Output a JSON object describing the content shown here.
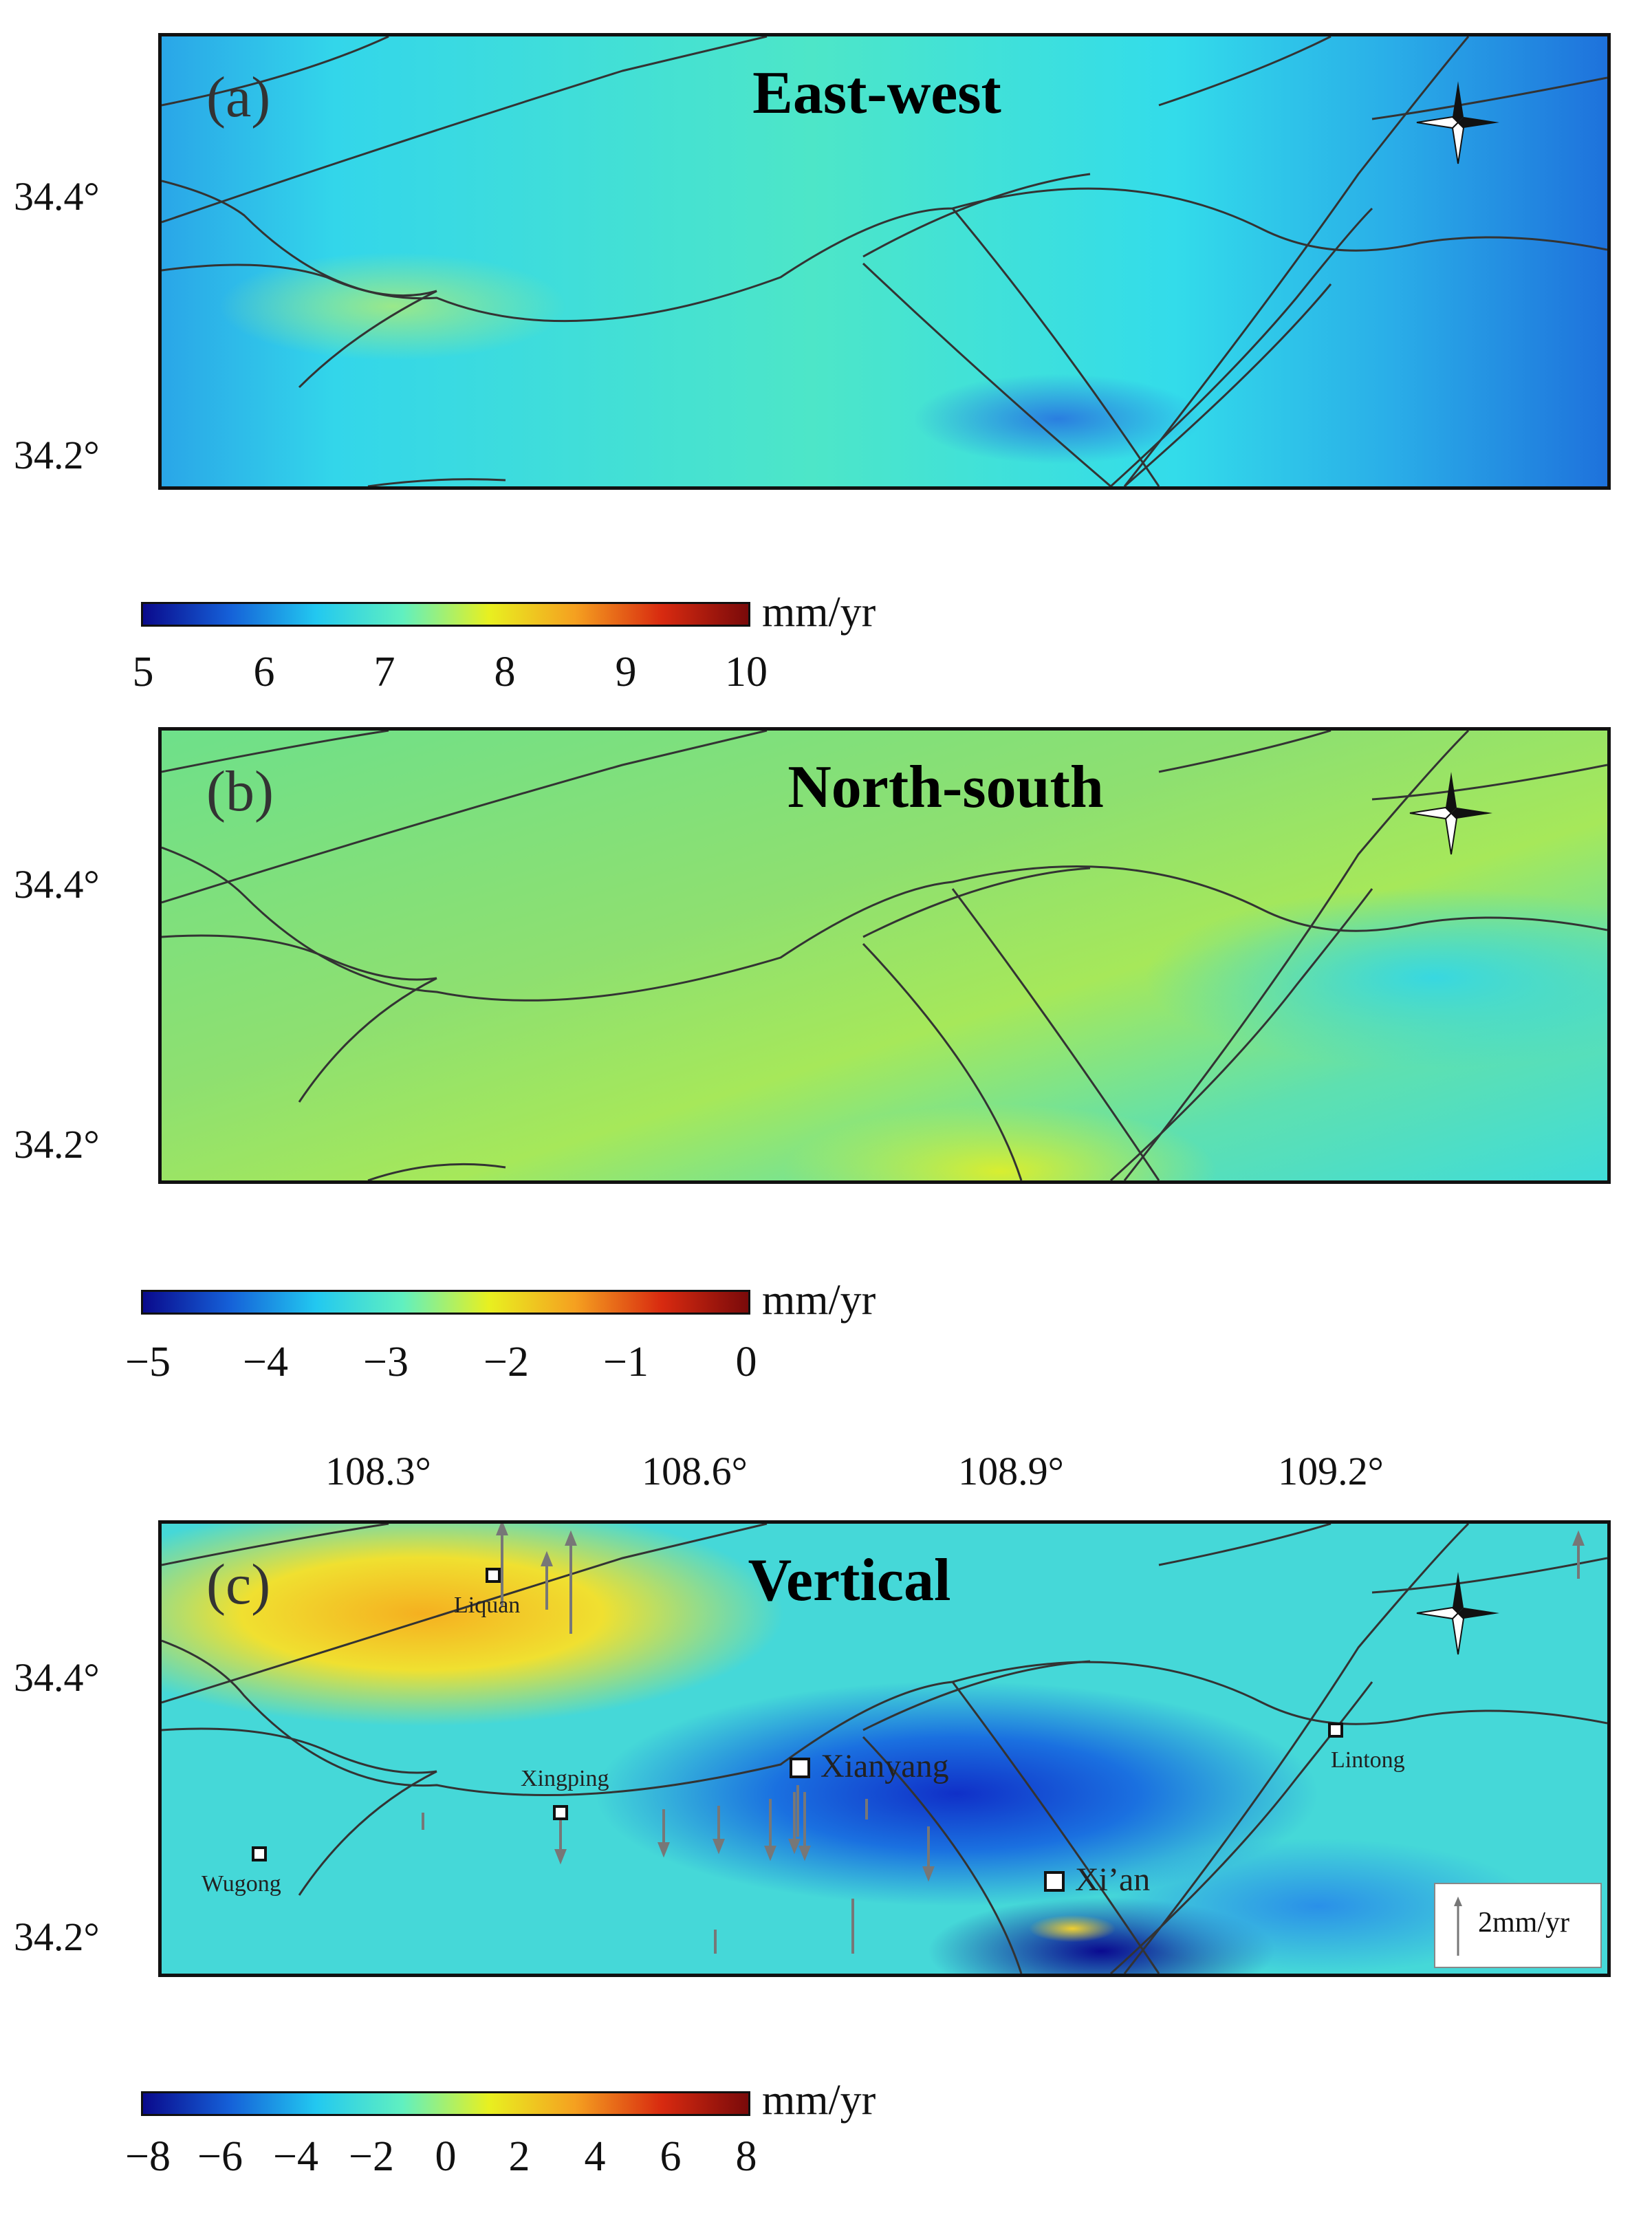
{
  "panels": [
    {
      "id": "a",
      "letter": "(a)",
      "title": "East-west"
    },
    {
      "id": "b",
      "letter": "(b)",
      "title": "North-south"
    },
    {
      "id": "c",
      "letter": "(c)",
      "title": "Vertical"
    }
  ],
  "axes": {
    "lat_ticks": [
      "34.4°",
      "34.2°"
    ],
    "lon_ticks": [
      "108.3°",
      "108.6°",
      "108.9°",
      "109.2°"
    ]
  },
  "colorbars": [
    {
      "unit": "mm/yr",
      "ticks": [
        "5",
        "6",
        "7",
        "8",
        "9",
        "10"
      ]
    },
    {
      "unit": "mm/yr",
      "ticks": [
        "−5",
        "−4",
        "−3",
        "−2",
        "−1",
        "0"
      ]
    },
    {
      "unit": "mm/yr",
      "ticks": [
        "−8",
        "−6",
        "−4",
        "−2",
        "0",
        "2",
        "4",
        "6",
        "8"
      ]
    }
  ],
  "cities": {
    "liquan": "Liquan",
    "xingping": "Xingping",
    "xianyang": "Xianyang",
    "xian": "Xi’an",
    "lintong": "Lintong",
    "wugong": "Wugong"
  },
  "scale_arrow": "2mm/yr",
  "colors": {
    "ew_base": "#33e0e6",
    "ns_base": "#7fe07a",
    "fault_line": "#333333",
    "colormap": [
      "#0a0a8c",
      "#1560d8",
      "#22c8f0",
      "#60f0c0",
      "#e8f020",
      "#f5a020",
      "#d82a10",
      "#7a0a0a"
    ]
  }
}
